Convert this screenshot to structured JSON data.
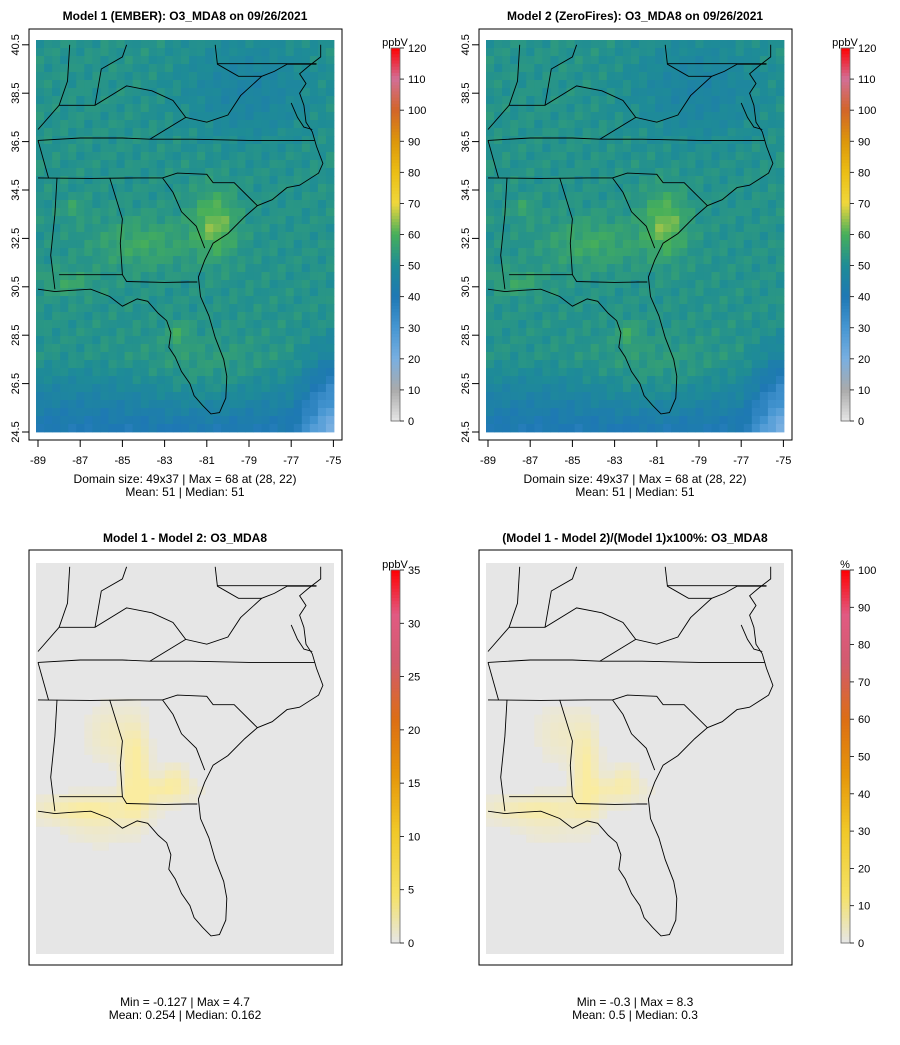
{
  "chart_data": [
    {
      "type": "heatmap",
      "title": "Model 1 (EMBER): O3_MDA8 on 09/26/2021",
      "x_ticks": [
        "-89",
        "-87",
        "-85",
        "-83",
        "-81",
        "-79",
        "-77",
        "-75"
      ],
      "y_ticks": [
        "24.5",
        "26.5",
        "28.5",
        "30.5",
        "32.5",
        "34.5",
        "36.5",
        "38.5",
        "40.5"
      ],
      "colorbar": {
        "unit": "ppbV",
        "min": 0,
        "max": 120,
        "ticks": [
          "0",
          "10",
          "20",
          "30",
          "40",
          "50",
          "60",
          "70",
          "80",
          "90",
          "100",
          "110",
          "120"
        ]
      },
      "domain_line": "Domain size: 49x37 | Max = 68 at (28, 22)",
      "mean_median_line": "Mean: 51 |  Median: 51",
      "stats": {
        "domain_size": "49x37",
        "max": 68,
        "max_at": [
          28,
          22
        ],
        "mean": 51,
        "median": 51
      }
    },
    {
      "type": "heatmap",
      "title": "Model 2 (ZeroFires): O3_MDA8 on 09/26/2021",
      "x_ticks": [
        "-89",
        "-87",
        "-85",
        "-83",
        "-81",
        "-79",
        "-77",
        "-75"
      ],
      "y_ticks": [
        "24.5",
        "26.5",
        "28.5",
        "30.5",
        "32.5",
        "34.5",
        "36.5",
        "38.5",
        "40.5"
      ],
      "colorbar": {
        "unit": "ppbV",
        "min": 0,
        "max": 120,
        "ticks": [
          "0",
          "10",
          "20",
          "30",
          "40",
          "50",
          "60",
          "70",
          "80",
          "90",
          "100",
          "110",
          "120"
        ]
      },
      "domain_line": "Domain size: 49x37 | Max = 68 at (28, 22)",
      "mean_median_line": "Mean: 51 |  Median: 51",
      "stats": {
        "domain_size": "49x37",
        "max": 68,
        "max_at": [
          28,
          22
        ],
        "mean": 51,
        "median": 51
      }
    },
    {
      "type": "heatmap",
      "title": "Model 1 - Model 2: O3_MDA8",
      "colorbar": {
        "unit": "ppbV",
        "min": 0,
        "max": 35,
        "ticks": [
          "0",
          "5",
          "10",
          "15",
          "20",
          "25",
          "30",
          "35"
        ]
      },
      "minmax_line": "Min = -0.127 | Max = 4.7",
      "mean_median_line": "Mean: 0.254 |  Median: 0.162",
      "stats": {
        "min": -0.127,
        "max": 4.7,
        "mean": 0.254,
        "median": 0.162
      }
    },
    {
      "type": "heatmap",
      "title": "(Model 1 - Model 2)/(Model 1)x100%: O3_MDA8",
      "colorbar": {
        "unit": "%",
        "min": 0,
        "max": 100,
        "ticks": [
          "0",
          "10",
          "20",
          "30",
          "40",
          "50",
          "60",
          "70",
          "80",
          "90",
          "100"
        ]
      },
      "minmax_line": "Min = -0.3 | Max = 8.3",
      "mean_median_line": "Mean: 0.5 |  Median: 0.3",
      "stats": {
        "min": -0.3,
        "max": 8.3,
        "mean": 0.5,
        "median": 0.3
      }
    }
  ]
}
